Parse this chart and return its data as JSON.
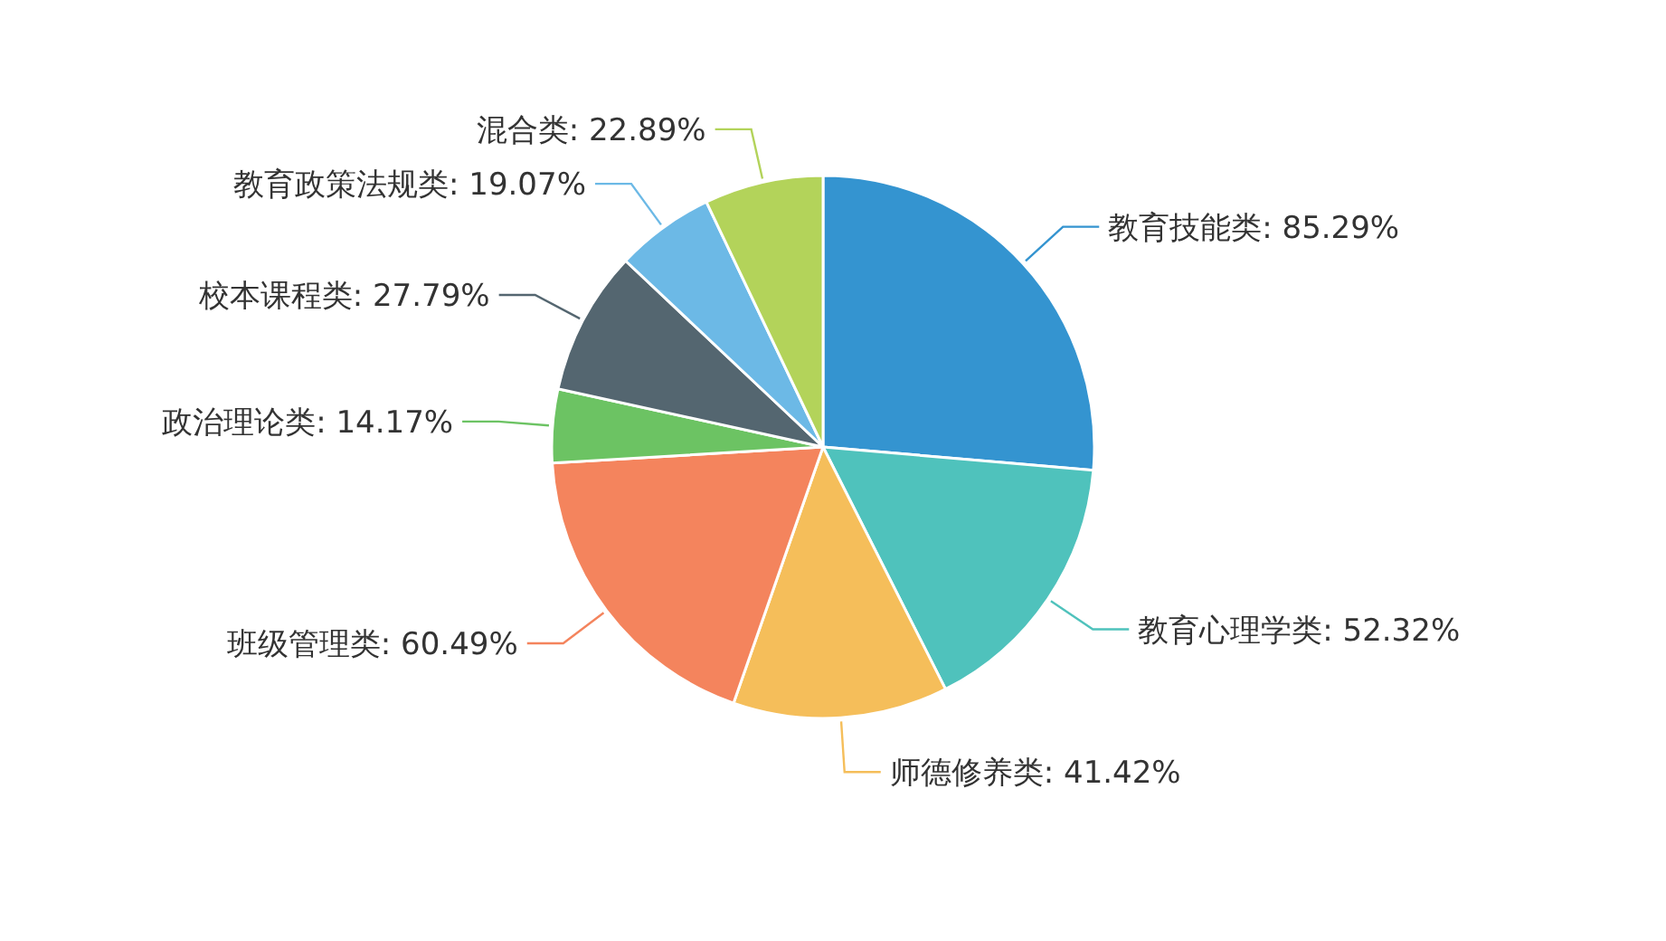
{
  "chart_data": {
    "type": "pie",
    "categories": [
      "教育技能类",
      "教育心理学类",
      "师德修养类",
      "班级管理类",
      "政治理论类",
      "校本课程类",
      "教育政策法规类",
      "混合类"
    ],
    "values": [
      85.29,
      52.32,
      41.42,
      60.49,
      14.17,
      27.79,
      19.07,
      22.89
    ],
    "value_labels": [
      "85.29%",
      "52.32%",
      "41.42%",
      "60.49%",
      "14.17%",
      "27.79%",
      "19.07%",
      "22.89%"
    ],
    "colors": [
      "#3494d0",
      "#4fc2bc",
      "#f5be5a",
      "#f4845d",
      "#6cc363",
      "#546670",
      "#6cb9e6",
      "#b3d35a"
    ]
  }
}
